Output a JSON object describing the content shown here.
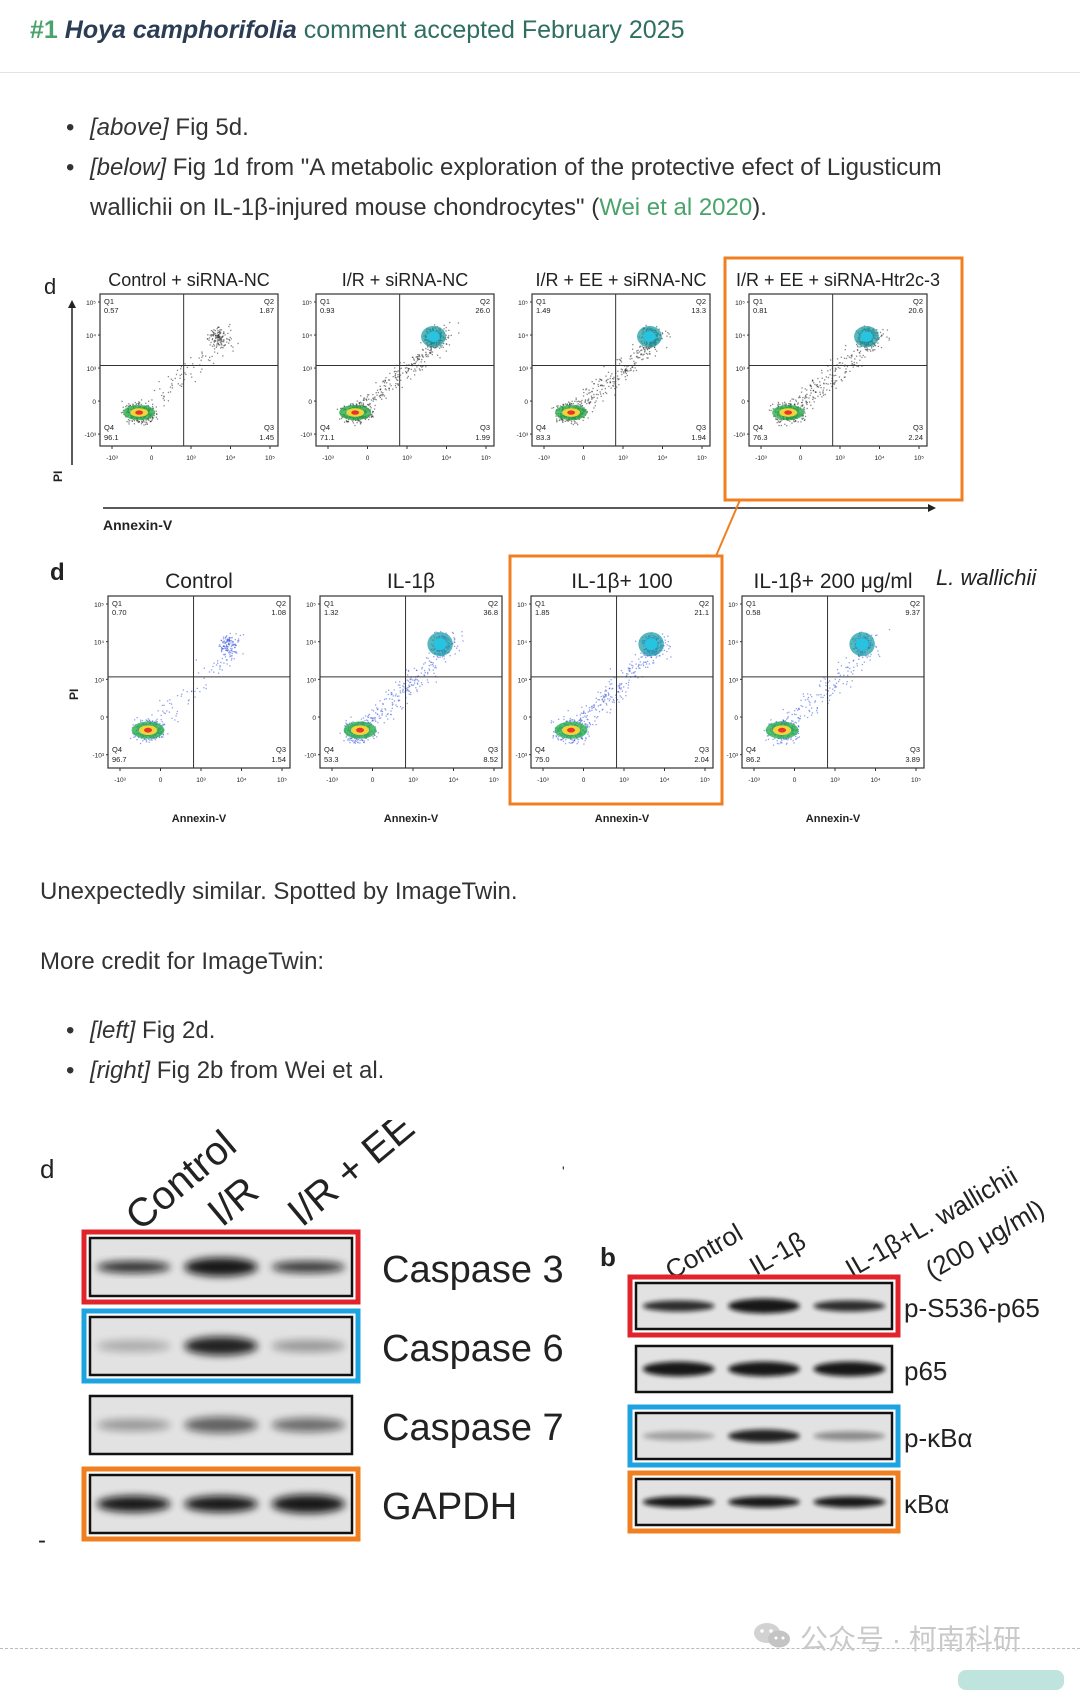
{
  "header": {
    "number": "#1",
    "species": "Hoya camphorifolia",
    "status": "comment accepted February 2025"
  },
  "list1": [
    {
      "tag": "[above]",
      "text": " Fig 5d."
    },
    {
      "tag": "[below]",
      "text_before": " Fig 1d from \"A metabolic exploration of the protective efect of Ligusticum wallichii on IL-1β-injured mouse chondrocytes\" (",
      "link": "Wei et al 2020",
      "text_after": ")."
    }
  ],
  "para1": "Unexpectedly similar. Spotted by ImageTwin.",
  "para2": "More credit for ImageTwin:",
  "list2": [
    {
      "tag": "[left]",
      "text": " Fig 2d."
    },
    {
      "tag": "[right]",
      "text": " Fig 2b from Wei et al."
    }
  ],
  "fig_top": {
    "panel_letter": "d",
    "y_axis": "PI",
    "x_axis": "Annexin-V",
    "panels": [
      {
        "title": "Control + siRNA-NC",
        "q1": "0.57",
        "q2": "1.87",
        "q3": "1.45",
        "q4": "96.1"
      },
      {
        "title": "I/R + siRNA-NC",
        "q1": "0.93",
        "q2": "26.0",
        "q3": "1.99",
        "q4": "71.1"
      },
      {
        "title": "I/R + EE + siRNA-NC",
        "q1": "1.49",
        "q2": "13.3",
        "q3": "1.94",
        "q4": "83.3"
      },
      {
        "title": "I/R + EE + siRNA-Htr2c-3",
        "q1": "0.81",
        "q2": "20.6",
        "q3": "2.24",
        "q4": "76.3"
      }
    ]
  },
  "fig_bottom": {
    "panel_letter": "d",
    "y_axis": "PI",
    "x_axis": "Annexin-V",
    "extra_label": "L. wallichii",
    "panels": [
      {
        "title": "Control",
        "q1": "0.70",
        "q2": "1.08",
        "q3": "1.54",
        "q4": "96.7"
      },
      {
        "title": "IL-1β",
        "q1": "1.32",
        "q2": "36.8",
        "q3": "8.52",
        "q4": "53.3"
      },
      {
        "title": "IL-1β+ 100",
        "q1": "1.85",
        "q2": "21.1",
        "q3": "2.04",
        "q4": "75.0"
      },
      {
        "title": "IL-1β+ 200  μg/ml",
        "q1": "0.58",
        "q2": "9.37",
        "q3": "3.89",
        "q4": "86.2"
      }
    ]
  },
  "blot_left": {
    "panel_letter": "d",
    "columns": [
      "Control",
      "I/R",
      "I/R + EE"
    ],
    "rows": [
      "Caspase 3",
      "Caspase 6",
      "Caspase 7",
      "GAPDH"
    ]
  },
  "blot_right": {
    "panel_letter": "b",
    "columns": [
      "Control",
      "IL-1β",
      "IL-1β+L. wallichii",
      "(200 μg/ml)"
    ],
    "rows": [
      "p-S536-p65",
      "p65",
      "p-κBα",
      "κBα"
    ]
  },
  "watermark": "公众号 · 柯南科研",
  "colors": {
    "green": "#4aa36a",
    "orange": "#f07f22",
    "red": "#e0242c",
    "blue": "#1da3e0",
    "dark": "#2a3d55"
  }
}
